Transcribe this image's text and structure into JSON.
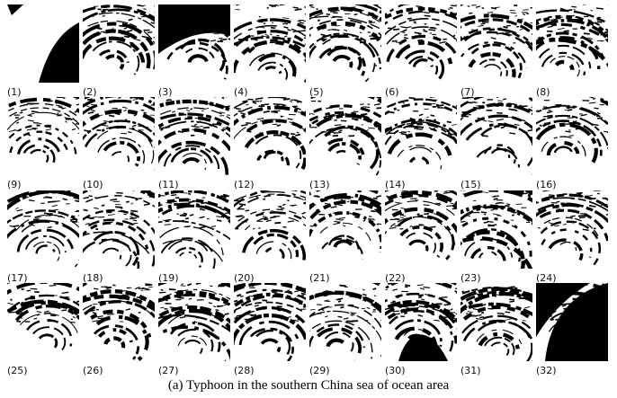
{
  "panels": [
    {
      "label": "(1)"
    },
    {
      "label": "(2)"
    },
    {
      "label": "(3)"
    },
    {
      "label": "(4)"
    },
    {
      "label": "(5)"
    },
    {
      "label": "(6)"
    },
    {
      "label": "(7)"
    },
    {
      "label": "(8)"
    },
    {
      "label": "(9)"
    },
    {
      "label": "(10)"
    },
    {
      "label": "(11)"
    },
    {
      "label": "(12)"
    },
    {
      "label": "(13)"
    },
    {
      "label": "(14)"
    },
    {
      "label": "(15)"
    },
    {
      "label": "(16)"
    },
    {
      "label": "(17)"
    },
    {
      "label": "(18)"
    },
    {
      "label": "(19)"
    },
    {
      "label": "(20)"
    },
    {
      "label": "(21)"
    },
    {
      "label": "(22)"
    },
    {
      "label": "(23)"
    },
    {
      "label": "(24)"
    },
    {
      "label": "(25)"
    },
    {
      "label": "(26)"
    },
    {
      "label": "(27)"
    },
    {
      "label": "(28)"
    },
    {
      "label": "(29)"
    },
    {
      "label": "(30)"
    },
    {
      "label": "(31)"
    },
    {
      "label": "(32)"
    }
  ],
  "caption": "(a) Typhoon in the southern China sea of ocean area"
}
